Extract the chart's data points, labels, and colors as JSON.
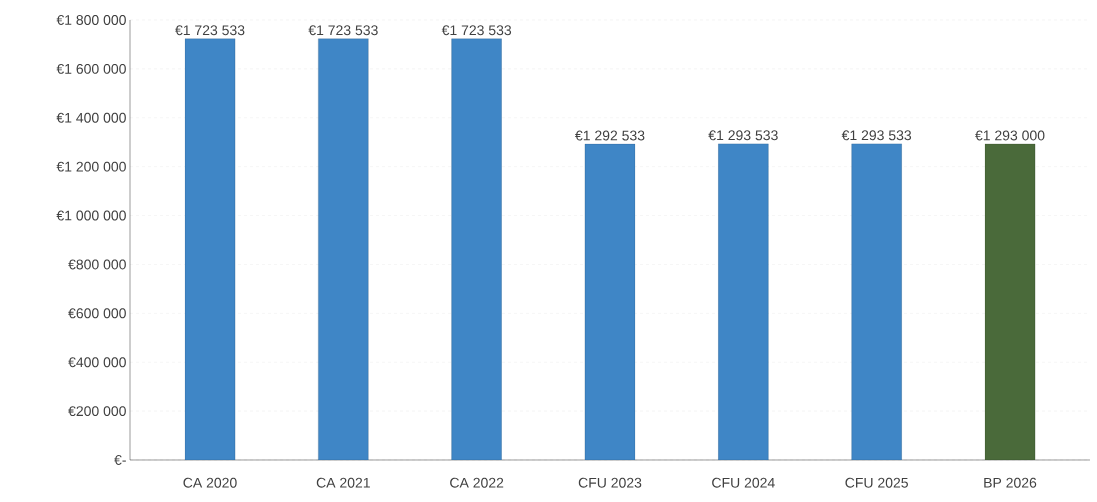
{
  "chart_data": {
    "type": "bar",
    "categories": [
      "CA 2020",
      "CA 2021",
      "CA 2022",
      "CFU 2023",
      "CFU 2024",
      "CFU 2025",
      "BP 2026"
    ],
    "values": [
      1723533,
      1723533,
      1723533,
      1292533,
      1293533,
      1293533,
      1293000
    ],
    "colors": [
      "#3f86c6",
      "#3f86c6",
      "#3f86c6",
      "#3f86c6",
      "#3f86c6",
      "#3f86c6",
      "#4a6a3a"
    ],
    "value_labels": [
      "€1 723 533",
      "€1 723 533",
      "€1 723 533",
      "€1 292 533",
      "€1 293 533",
      "€1 293 533",
      "€1 293 000"
    ],
    "ylim": [
      0,
      1800000
    ],
    "yticks": [
      {
        "value": 0,
        "label": "€-"
      },
      {
        "value": 200000,
        "label": "€200 000"
      },
      {
        "value": 400000,
        "label": "€400 000"
      },
      {
        "value": 600000,
        "label": "€600 000"
      },
      {
        "value": 800000,
        "label": "€800 000"
      },
      {
        "value": 1000000,
        "label": "€1 000 000"
      },
      {
        "value": 1200000,
        "label": "€1 200 000"
      },
      {
        "value": 1400000,
        "label": "€1 400 000"
      },
      {
        "value": 1600000,
        "label": "€1 600 000"
      },
      {
        "value": 1800000,
        "label": "€1 800 000"
      }
    ],
    "grid": "y"
  }
}
